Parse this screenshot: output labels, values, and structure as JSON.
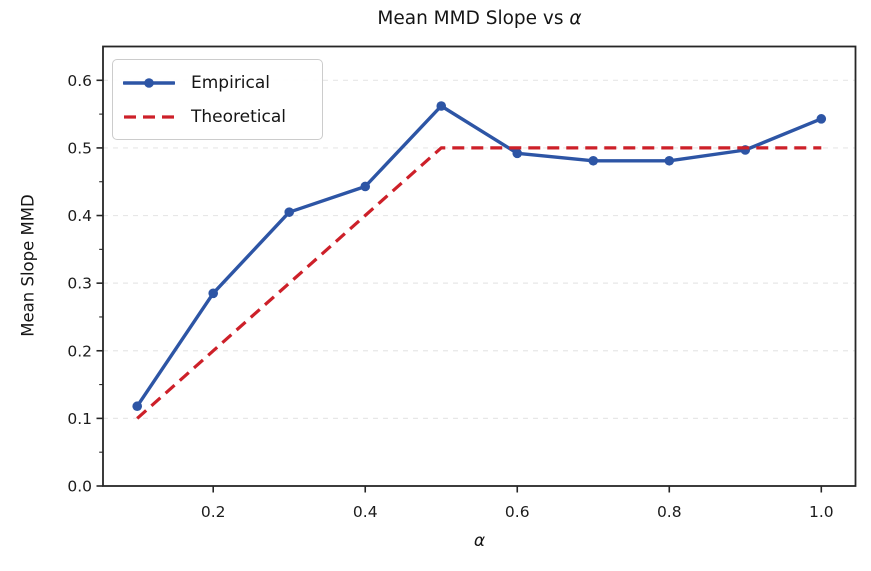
{
  "figure": {
    "title_main": "Mean MMD Slope vs ",
    "title_alpha": "α",
    "ylabel": "Mean Slope MMD",
    "xlabel_alpha": "α"
  },
  "chart_data": {
    "type": "line",
    "title": "Mean MMD Slope vs α",
    "xlabel": "α",
    "ylabel": "Mean Slope MMD",
    "x": [
      0.1,
      0.2,
      0.3,
      0.4,
      0.5,
      0.6,
      0.7,
      0.8,
      0.9,
      1.0
    ],
    "series": [
      {
        "name": "Empirical",
        "color": "#2d55a5",
        "style": "solid",
        "marker": "circle",
        "line_width": 3.4,
        "marker_radius": 4.8,
        "values": [
          0.118,
          0.285,
          0.405,
          0.443,
          0.562,
          0.492,
          0.481,
          0.481,
          0.497,
          0.543
        ]
      },
      {
        "name": "Theoretical",
        "color": "#cd2029",
        "style": "dashed",
        "marker": "none",
        "line_width": 3.2,
        "dash": [
          12,
          7
        ],
        "values": [
          0.1,
          0.2,
          0.3,
          0.4,
          0.5,
          0.5,
          0.5,
          0.5,
          0.5,
          0.5
        ]
      }
    ],
    "xlim": [
      0.055,
      1.045
    ],
    "ylim": [
      0.0,
      0.65
    ],
    "xticks": [
      0.2,
      0.4,
      0.6,
      0.8,
      1.0
    ],
    "yticks": [
      0.0,
      0.1,
      0.2,
      0.3,
      0.4,
      0.5,
      0.6
    ],
    "y_minor_step": 0.05,
    "tick_label_format_decimals": 1,
    "grid": "horizontal-dashed",
    "grid_color": "#e7e7e7",
    "axis_color": "#262626",
    "legend_position": "upper-left"
  }
}
